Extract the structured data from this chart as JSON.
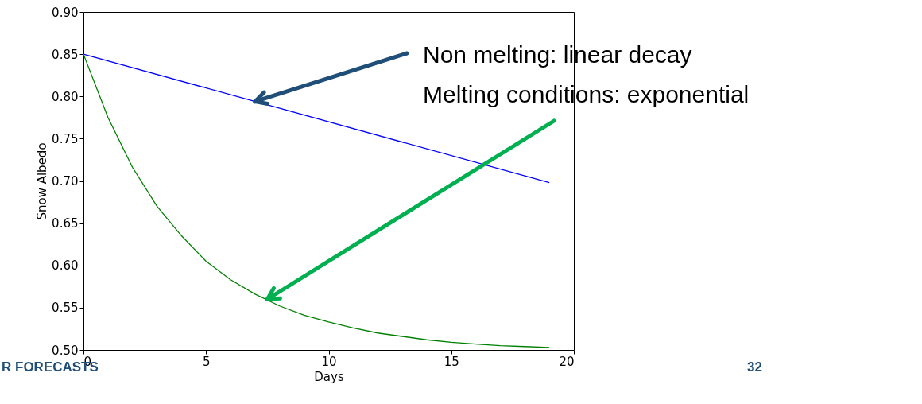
{
  "chart_data": {
    "type": "line",
    "xlabel": "Days",
    "ylabel": "Snow Albedo",
    "xlim": [
      0,
      20
    ],
    "xticks": [
      0,
      5,
      10,
      15,
      20
    ],
    "ylim": [
      0.5,
      0.9
    ],
    "yticks": [
      {
        "value": 0.5,
        "label": "0.50"
      },
      {
        "value": 0.55,
        "label": "0.55"
      },
      {
        "value": 0.6,
        "label": "0.60"
      },
      {
        "value": 0.65,
        "label": "0.65"
      },
      {
        "value": 0.7,
        "label": "0.70"
      },
      {
        "value": 0.75,
        "label": "0.75"
      },
      {
        "value": 0.8,
        "label": "0.80"
      },
      {
        "value": 0.85,
        "label": "0.85"
      },
      {
        "value": 0.9,
        "label": "0.90"
      }
    ],
    "series": [
      {
        "color": "#0000ff",
        "x": [
          0,
          19
        ],
        "values": [
          0.85,
          0.698
        ]
      },
      {
        "color": "#008000",
        "x": [
          0,
          1,
          2,
          3,
          4,
          5,
          6,
          7,
          8,
          9,
          10,
          11,
          12,
          13,
          14,
          15,
          16,
          17,
          18,
          19
        ],
        "values": [
          0.85,
          0.775,
          0.716,
          0.67,
          0.635,
          0.605,
          0.583,
          0.566,
          0.552,
          0.541,
          0.533,
          0.526,
          0.52,
          0.516,
          0.512,
          0.509,
          0.507,
          0.505,
          0.504,
          0.503
        ]
      }
    ],
    "annotations": [
      {
        "text": "Non melting: linear decay",
        "x": 7,
        "y": 0.794
      },
      {
        "text": "Melting conditions: exponential",
        "x": 7.5,
        "y": 0.56
      },
      "R FORECASTS",
      "32"
    ],
    "grid": false,
    "marker": "none",
    "line_style": "solid"
  }
}
